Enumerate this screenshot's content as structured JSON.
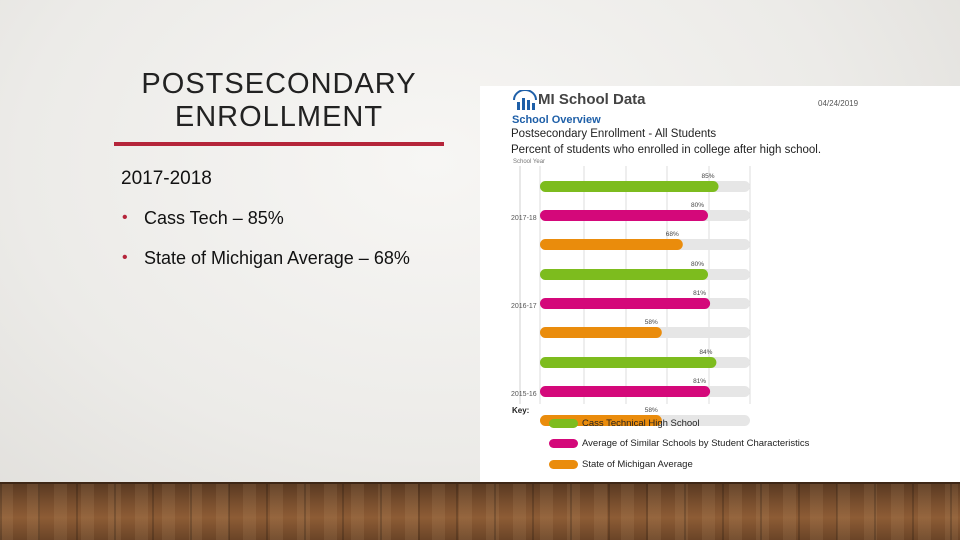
{
  "slide": {
    "title_line1": "POSTSECONDARY",
    "title_line2": "ENROLLMENT",
    "subhead": "2017-2018",
    "bullets": [
      "Cass Tech – 85%",
      "State of Michigan Average – 68%"
    ],
    "accent_color": "#b5253a"
  },
  "panel": {
    "logo_text": "MI School Data",
    "date": "04/24/2019",
    "overview_title": "School Overview",
    "line1": "Postsecondary Enrollment - All Students",
    "line2": "Percent of students who enrolled in college after high school.",
    "axis_caption": "School Year",
    "key_label": "Key:"
  },
  "chart_data": {
    "type": "bar",
    "orientation": "horizontal",
    "title": "Postsecondary Enrollment - All Students",
    "subtitle": "Percent of students who enrolled in college after high school.",
    "ylabel": "School Year",
    "categories": [
      "2017-18",
      "2016-17",
      "2015-16"
    ],
    "series": [
      {
        "name": "Cass Technical High School",
        "color": "#7dbc1e",
        "values": [
          85,
          80,
          84
        ]
      },
      {
        "name": "Average of Similar Schools by Student Characteristics",
        "color": "#d4087a",
        "values": [
          80,
          81,
          81
        ]
      },
      {
        "name": "State of Michigan Average",
        "color": "#ea8c0c",
        "values": [
          68,
          58,
          58
        ]
      }
    ],
    "xlim": [
      0,
      100
    ],
    "track_color": "#e6e6e6",
    "grid": true,
    "legend_position": "bottom-left"
  }
}
